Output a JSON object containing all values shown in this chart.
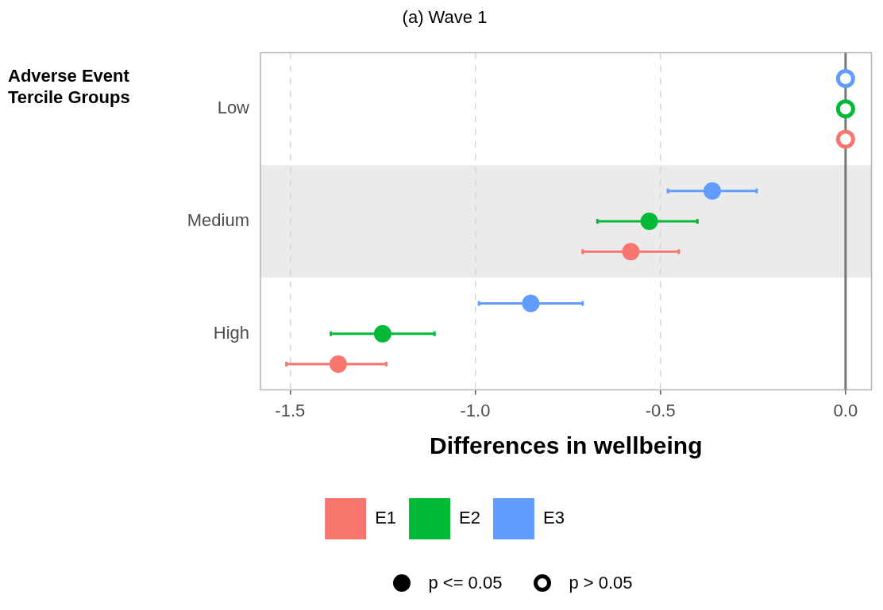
{
  "chart_data": {
    "type": "scatter",
    "orientation": "horizontal",
    "title": "(a) Wave 1",
    "xlabel": "Differences in wellbeing",
    "ylabel": "Adverse Event Tercile Groups",
    "categories": [
      "Low",
      "Medium",
      "High"
    ],
    "series": [
      {
        "name": "E1",
        "color": "#f8766d",
        "values": [
          0,
          -0.58,
          -1.37
        ],
        "errors": [
          null,
          [
            -0.71,
            -0.45
          ],
          [
            -1.51,
            -1.24
          ]
        ]
      },
      {
        "name": "E2",
        "color": "#00ba38",
        "values": [
          0,
          -0.53,
          -1.25
        ],
        "errors": [
          null,
          [
            -0.67,
            -0.4
          ],
          [
            -1.39,
            -1.11
          ]
        ]
      },
      {
        "name": "E3",
        "color": "#619cff",
        "values": [
          0,
          -0.36,
          -0.85
        ],
        "errors": [
          null,
          [
            -0.48,
            -0.24
          ],
          [
            -0.99,
            -0.71
          ]
        ]
      }
    ],
    "xlim": [
      -1.58,
      0.07
    ],
    "xticks": [
      -1.5,
      {
        "value": -1,
        "label": "-1.0"
      },
      -0.5,
      {
        "value": 0,
        "label": "0.0"
      }
    ],
    "grid": "x",
    "marker": "circle",
    "legend": "bottom",
    "ref_lines": [
      {
        "axis": "x",
        "value": 0,
        "color": "#777777"
      }
    ],
    "bands": [
      {
        "axis": "y",
        "from": "Medium",
        "to": "Medium",
        "color": "#ebebeb"
      }
    ],
    "annotations": [
      "p <= 0.05",
      "p > 0.05"
    ]
  }
}
